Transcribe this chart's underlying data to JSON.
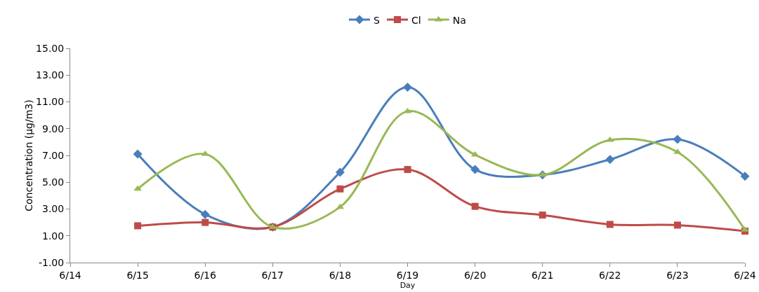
{
  "chart_data": {
    "type": "line",
    "xlabel": "Day",
    "ylabel": "Concentration (µg/m3)",
    "x": [
      "--06-15",
      "--06-16",
      "--06-17",
      "--06-18",
      "--06-19",
      "--06-20",
      "--06-21",
      "--06-22",
      "--06-23",
      "--06-24"
    ],
    "xlim": [
      "--06-14",
      "--06-24"
    ],
    "xticks": [
      {
        "value": "--06-14",
        "label": "6/14"
      },
      {
        "value": "--06-15",
        "label": "6/15"
      },
      {
        "value": "--06-16",
        "label": "6/16"
      },
      {
        "value": "--06-17",
        "label": "6/17"
      },
      {
        "value": "--06-18",
        "label": "6/18"
      },
      {
        "value": "--06-19",
        "label": "6/19"
      },
      {
        "value": "--06-20",
        "label": "6/20"
      },
      {
        "value": "--06-21",
        "label": "6/21"
      },
      {
        "value": "--06-22",
        "label": "6/22"
      },
      {
        "value": "--06-23",
        "label": "6/23"
      },
      {
        "value": "--06-24",
        "label": "6/24"
      }
    ],
    "ylim": [
      -1,
      15
    ],
    "yticks": [
      {
        "value": -1,
        "label": "-1.00"
      },
      {
        "value": 1,
        "label": "1.00"
      },
      {
        "value": 3,
        "label": "3.00"
      },
      {
        "value": 5,
        "label": "5.00"
      },
      {
        "value": 7,
        "label": "7.00"
      },
      {
        "value": 9,
        "label": "9.00"
      },
      {
        "value": 11,
        "label": "11.00"
      },
      {
        "value": 13,
        "label": "13.00"
      },
      {
        "value": 15,
        "label": "15.00"
      }
    ],
    "grid": false,
    "legend": "top",
    "series": [
      {
        "name": "S",
        "color": "#4a7ebb",
        "marker": "diamond",
        "values": [
          7.1,
          2.6,
          1.65,
          5.75,
          12.1,
          5.95,
          5.55,
          6.7,
          8.2,
          5.45
        ]
      },
      {
        "name": "Cl",
        "color": "#be4b48",
        "marker": "square",
        "values": [
          1.75,
          2.0,
          1.65,
          4.5,
          5.95,
          3.2,
          2.55,
          1.85,
          1.8,
          1.35
        ]
      },
      {
        "name": "Na",
        "color": "#98b954",
        "marker": "triangle",
        "values": [
          4.5,
          7.1,
          1.65,
          3.15,
          10.3,
          7.05,
          5.55,
          8.15,
          7.25,
          1.45
        ]
      }
    ]
  }
}
